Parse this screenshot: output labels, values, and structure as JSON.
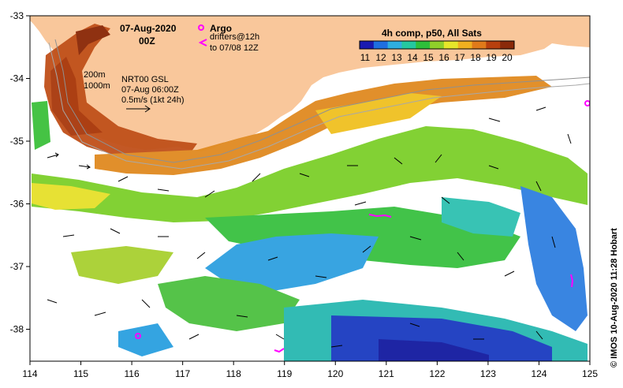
{
  "title": {
    "date": "07-Aug-2020",
    "time": "00Z"
  },
  "legend": {
    "argo_label": "Argo",
    "argo_color": "#ff00ff",
    "drifters_line1": "drifters@12h",
    "drifters_line2": "to 07/08 12Z"
  },
  "colorbar": {
    "title": "4h comp, p50, All Sats",
    "ticks": [
      "11",
      "12",
      "13",
      "14",
      "15",
      "16",
      "17",
      "18",
      "19",
      "20"
    ],
    "colors": [
      "#1a1ab0",
      "#1f6fe0",
      "#2eaee0",
      "#24c8a0",
      "#2ebf3a",
      "#8fd02a",
      "#e6e62a",
      "#f0b020",
      "#e07a1a",
      "#b8400e",
      "#8a2a0a"
    ]
  },
  "isobaths": {
    "label_200": "200m",
    "label_1000": "1000m"
  },
  "current_info": {
    "line1": "NRT00 GSL",
    "line2": "07-Aug 06:00Z",
    "line3": "0.5m/s (1kt 24h)"
  },
  "axes": {
    "x_ticks": [
      "114",
      "115",
      "116",
      "117",
      "118",
      "119",
      "120",
      "121",
      "122",
      "123",
      "124",
      "125"
    ],
    "y_ticks": [
      "-33",
      "-34",
      "-35",
      "-36",
      "-37",
      "-38"
    ]
  },
  "credit": "© IMOS 10-Aug-2020 11:28 Hobart",
  "colors": {
    "land": "#f9c79b",
    "frame": "#000000"
  }
}
